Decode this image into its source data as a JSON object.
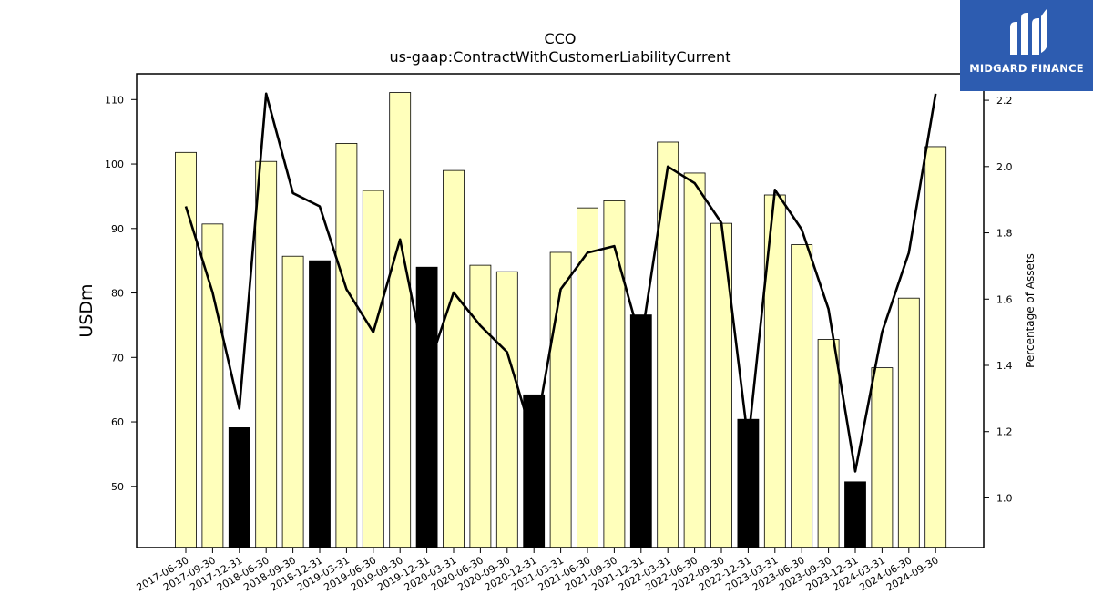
{
  "logo": {
    "text": "MIDGARD FINANCE",
    "icon": "midgard-finance-logo-mark",
    "background": "#2d5cb0"
  },
  "chart_data": {
    "type": "bar",
    "title": "CCO",
    "subtitle": "us-gaap:ContractWithCustomerLiabilityCurrent",
    "ylabel": "USDm",
    "y2label": "Percentage of Assets",
    "ylim": [
      40.5,
      114
    ],
    "y2lim": [
      0.85,
      2.28
    ],
    "yticks": [
      50,
      60,
      70,
      80,
      90,
      100,
      110
    ],
    "y2ticks": [
      1.0,
      1.2,
      1.4,
      1.6,
      1.8,
      2.0,
      2.2
    ],
    "grid": false,
    "colors": {
      "bar_default": "#ffffbb",
      "bar_q4": "#000000",
      "bar_edge": "#000000",
      "line": "#000000"
    },
    "categories": [
      "2017-06-30",
      "2017-09-30",
      "2017-12-31",
      "2018-06-30",
      "2018-09-30",
      "2018-12-31",
      "2019-03-31",
      "2019-06-30",
      "2019-09-30",
      "2019-12-31",
      "2020-03-31",
      "2020-06-30",
      "2020-09-30",
      "2020-12-31",
      "2021-03-31",
      "2021-06-30",
      "2021-09-30",
      "2021-12-31",
      "2022-03-31",
      "2022-06-30",
      "2022-09-30",
      "2022-12-31",
      "2023-03-31",
      "2023-06-30",
      "2023-09-30",
      "2023-12-31",
      "2024-03-31",
      "2024-06-30",
      "2024-09-30"
    ],
    "series": [
      {
        "type": "bar",
        "axis": "left",
        "values": [
          101.8,
          90.7,
          59.1,
          100.4,
          85.7,
          85.0,
          103.2,
          95.9,
          111.1,
          84.0,
          99.0,
          84.3,
          83.3,
          64.2,
          86.3,
          93.2,
          94.3,
          76.6,
          103.4,
          98.6,
          90.8,
          60.4,
          95.2,
          87.5,
          72.8,
          50.7,
          68.4,
          79.2,
          102.7
        ],
        "highlight": [
          false,
          false,
          true,
          false,
          false,
          true,
          false,
          false,
          false,
          true,
          false,
          false,
          false,
          true,
          false,
          false,
          false,
          true,
          false,
          false,
          false,
          true,
          false,
          false,
          false,
          true,
          false,
          false,
          false
        ]
      },
      {
        "type": "line",
        "axis": "right",
        "values": [
          1.88,
          1.62,
          1.27,
          2.22,
          1.92,
          1.88,
          1.63,
          1.5,
          1.78,
          1.38,
          1.62,
          1.52,
          1.44,
          1.17,
          1.63,
          1.74,
          1.76,
          1.47,
          2.0,
          1.95,
          1.83,
          1.17,
          1.93,
          1.81,
          1.57,
          1.08,
          1.5,
          1.74,
          2.22
        ]
      }
    ]
  }
}
